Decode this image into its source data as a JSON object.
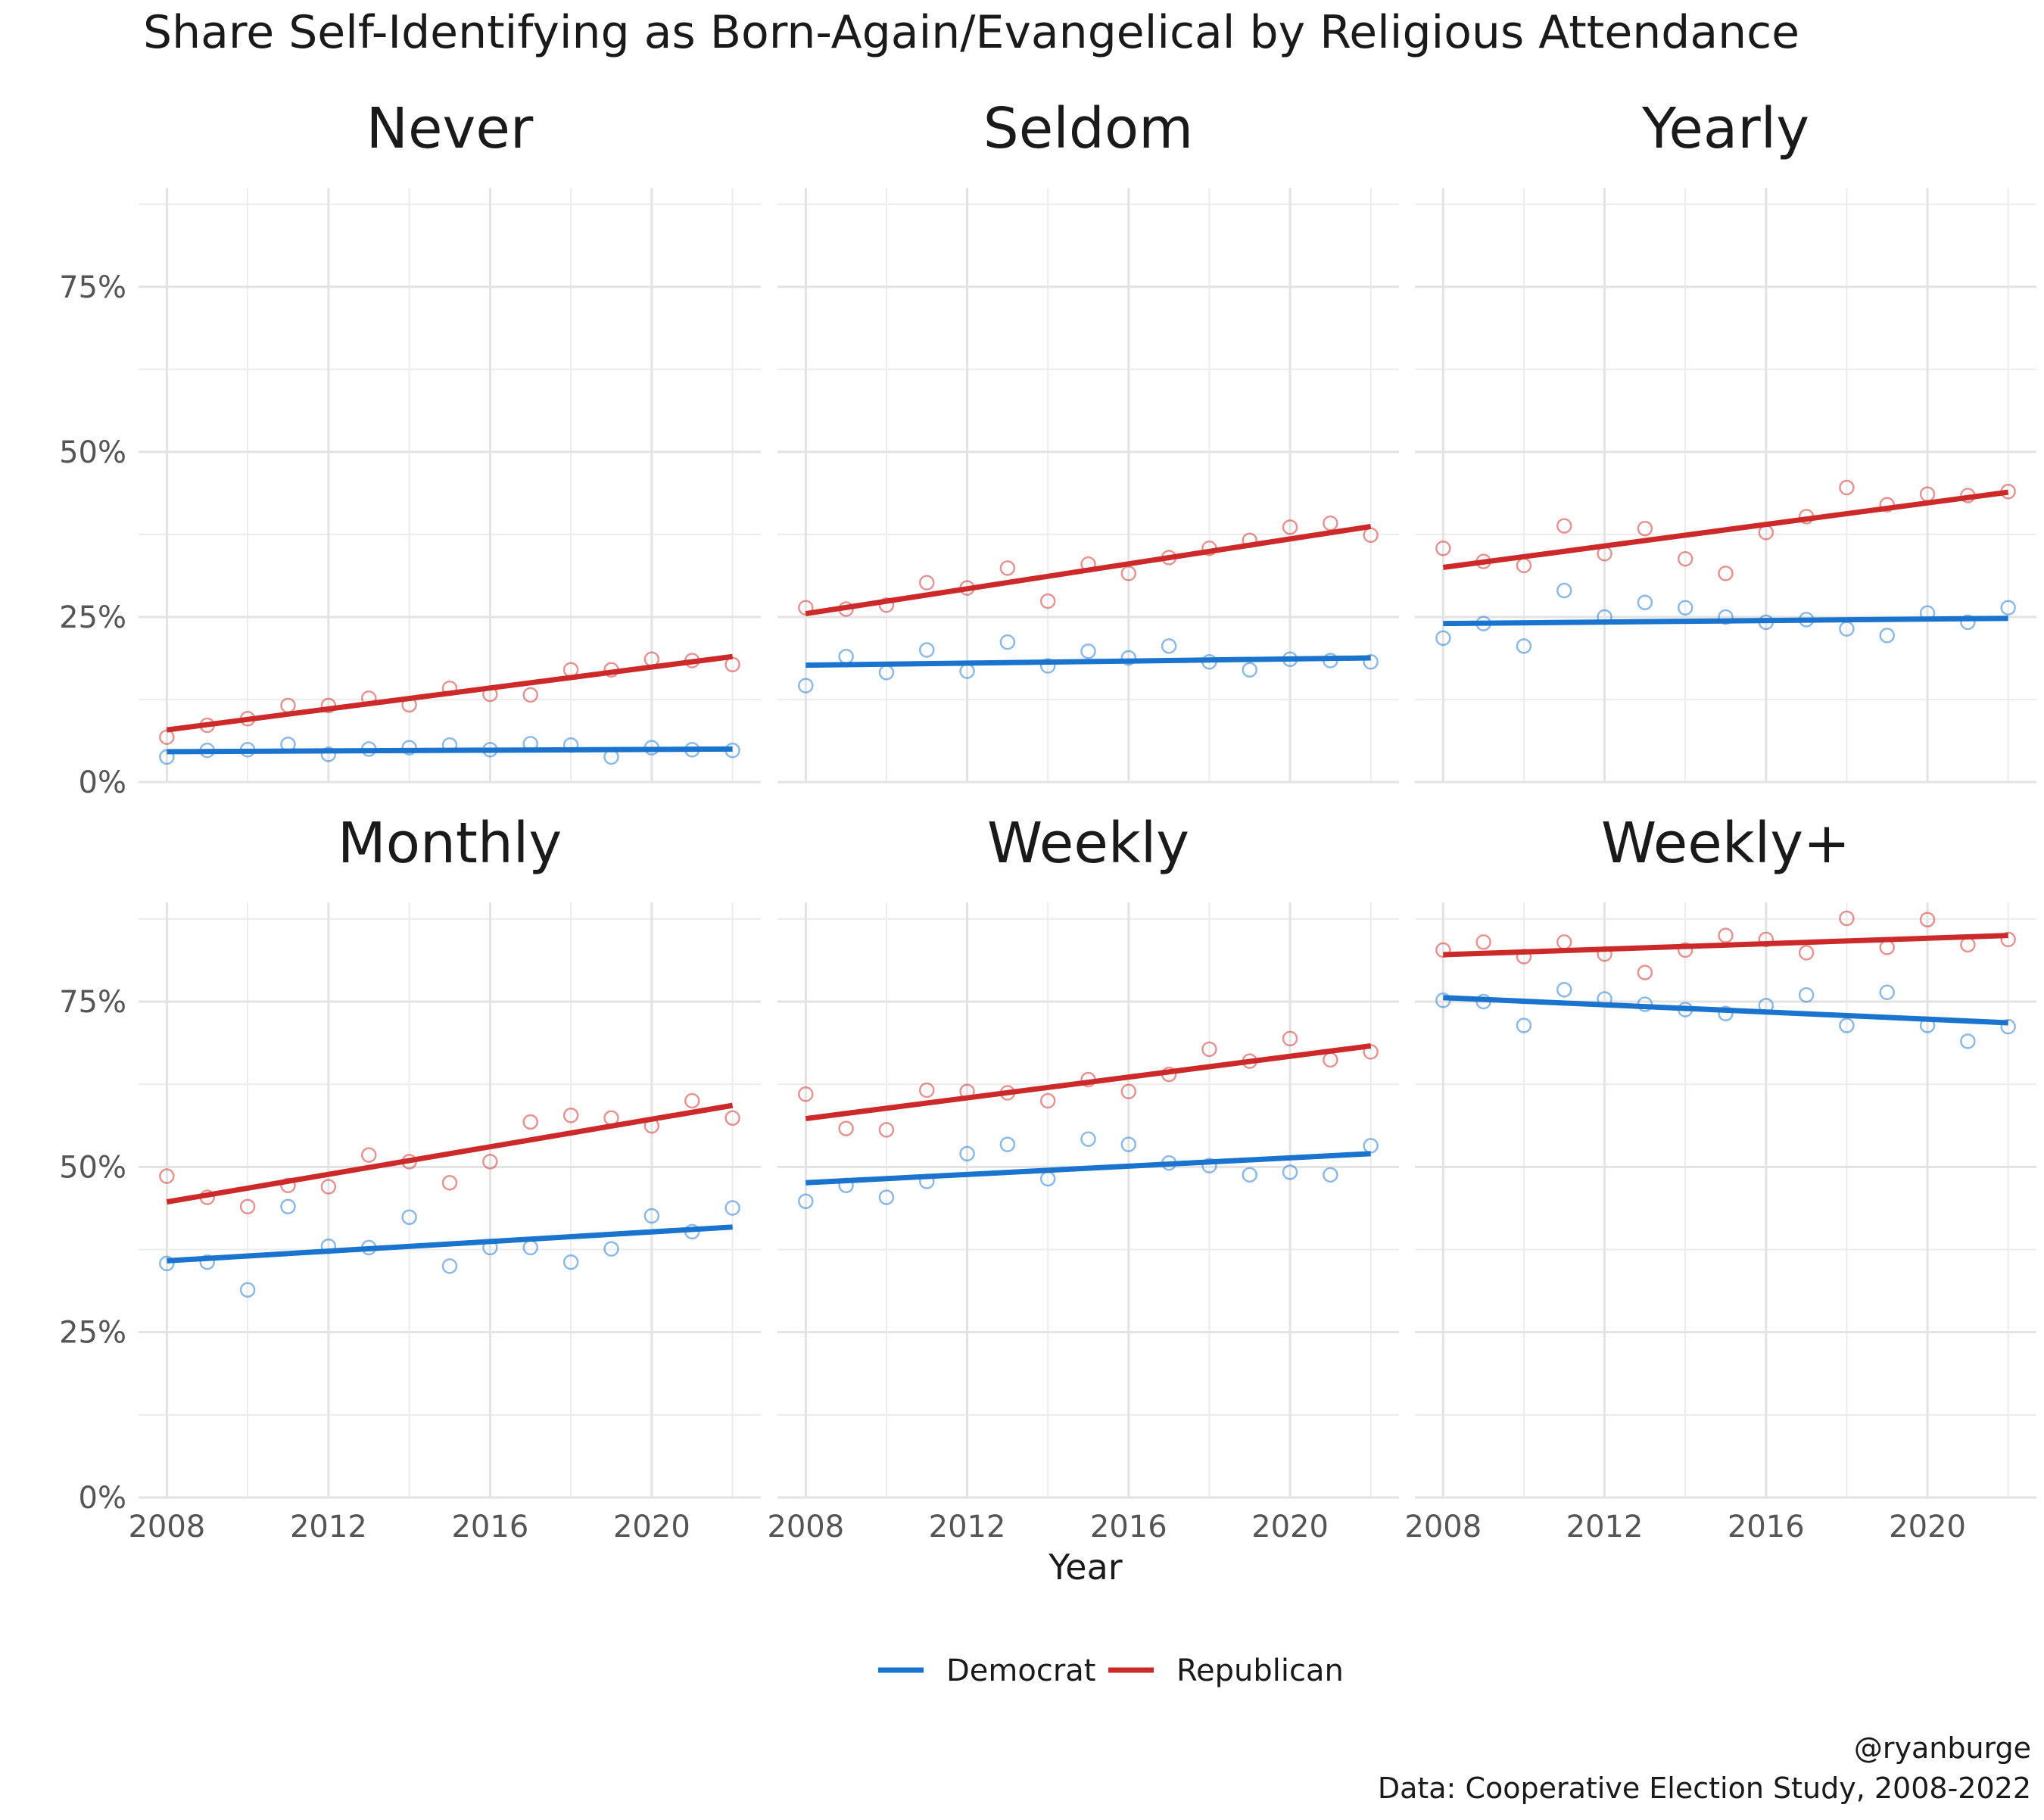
{
  "title": "Share Self-Identifying as Born-Again/Evangelical by Religious Attendance",
  "xlabel": "Year",
  "legend": [
    "Democrat",
    "Republican"
  ],
  "caption": [
    "@ryanburge",
    "Data: Cooperative Election Study, 2008-2022"
  ],
  "colors": {
    "Democrat": "#1a73cc",
    "Republican": "#cc2a2a"
  },
  "chart_data": {
    "type": "scatter",
    "title": "Share Self-Identifying as Born-Again/Evangelical by Religious Attendance",
    "xlabel": "Year",
    "ylabel": "",
    "x": [
      2008,
      2009,
      2010,
      2011,
      2012,
      2013,
      2014,
      2015,
      2016,
      2017,
      2018,
      2019,
      2020,
      2021,
      2022
    ],
    "xticks": [
      "2008",
      "2012",
      "2016",
      "2020"
    ],
    "xlim": [
      2007.3,
      2022.7
    ],
    "ylim": [
      0,
      90
    ],
    "yticks": [
      "0%",
      "25%",
      "50%",
      "75%"
    ],
    "grid": true,
    "legend_position": "bottom",
    "panels": [
      {
        "name": "Never",
        "series": [
          {
            "name": "Democrat",
            "values": [
              3.8,
              4.8,
              4.9,
              5.7,
              4.2,
              5.0,
              5.2,
              5.6,
              4.9,
              5.8,
              5.6,
              3.8,
              5.2,
              4.9,
              4.8
            ],
            "trend": [
              4.6,
              5.0
            ]
          },
          {
            "name": "Republican",
            "values": [
              6.8,
              8.6,
              9.6,
              11.6,
              11.6,
              12.7,
              11.7,
              14.2,
              13.3,
              13.2,
              17.0,
              17.0,
              18.6,
              18.4,
              17.8
            ],
            "trend": [
              7.9,
              19.0
            ]
          }
        ]
      },
      {
        "name": "Seldom",
        "series": [
          {
            "name": "Democrat",
            "values": [
              14.6,
              19.0,
              16.6,
              20.0,
              16.8,
              21.2,
              17.6,
              19.8,
              18.8,
              20.6,
              18.2,
              17.0,
              18.6,
              18.4,
              18.2
            ],
            "trend": [
              17.7,
              18.8
            ]
          },
          {
            "name": "Republican",
            "values": [
              26.4,
              26.2,
              26.8,
              30.2,
              29.4,
              32.4,
              27.4,
              33.0,
              31.6,
              34.0,
              35.4,
              36.6,
              38.6,
              39.2,
              37.4
            ],
            "trend": [
              25.5,
              38.7
            ]
          }
        ]
      },
      {
        "name": "Yearly",
        "series": [
          {
            "name": "Democrat",
            "values": [
              21.8,
              24.0,
              20.6,
              29.0,
              25.0,
              27.2,
              26.4,
              25.0,
              24.2,
              24.6,
              23.2,
              22.2,
              25.6,
              24.2,
              26.4
            ],
            "trend": [
              24.0,
              24.8
            ]
          },
          {
            "name": "Republican",
            "values": [
              35.4,
              33.4,
              32.8,
              38.8,
              34.6,
              38.4,
              33.8,
              31.6,
              37.8,
              40.2,
              44.6,
              42.0,
              43.6,
              43.4,
              44.0
            ],
            "trend": [
              32.5,
              43.9
            ]
          }
        ]
      },
      {
        "name": "Monthly",
        "series": [
          {
            "name": "Democrat",
            "values": [
              35.4,
              35.6,
              31.4,
              44.0,
              38.0,
              37.8,
              42.4,
              35.0,
              37.8,
              37.8,
              35.6,
              37.6,
              42.6,
              40.2,
              43.8
            ],
            "trend": [
              35.8,
              40.9
            ]
          },
          {
            "name": "Republican",
            "values": [
              48.6,
              45.4,
              44.0,
              47.2,
              47.0,
              51.8,
              50.8,
              47.6,
              50.8,
              56.8,
              57.8,
              57.4,
              56.2,
              60.0,
              57.4
            ],
            "trend": [
              44.7,
              59.3
            ]
          }
        ]
      },
      {
        "name": "Weekly",
        "series": [
          {
            "name": "Democrat",
            "values": [
              44.8,
              47.2,
              45.4,
              47.8,
              52.0,
              53.4,
              48.2,
              54.2,
              53.4,
              50.6,
              50.2,
              48.8,
              49.2,
              48.8,
              53.2
            ],
            "trend": [
              47.6,
              52.0
            ]
          },
          {
            "name": "Republican",
            "values": [
              61.0,
              55.8,
              55.6,
              61.6,
              61.4,
              61.2,
              60.0,
              63.2,
              61.4,
              64.0,
              67.8,
              66.0,
              69.4,
              66.2,
              67.4
            ],
            "trend": [
              57.3,
              68.3
            ]
          }
        ]
      },
      {
        "name": "Weekly+",
        "series": [
          {
            "name": "Democrat",
            "values": [
              75.2,
              75.0,
              71.4,
              76.8,
              75.4,
              74.6,
              73.8,
              73.2,
              74.4,
              76.0,
              71.4,
              76.4,
              71.4,
              69.0,
              71.2
            ],
            "trend": [
              75.6,
              71.8
            ]
          },
          {
            "name": "Republican",
            "values": [
              82.8,
              84.0,
              81.8,
              84.0,
              82.2,
              79.4,
              82.8,
              85.0,
              84.4,
              82.4,
              87.6,
              83.2,
              87.4,
              83.6,
              84.4
            ],
            "trend": [
              82.1,
              85.0
            ]
          }
        ]
      }
    ]
  }
}
